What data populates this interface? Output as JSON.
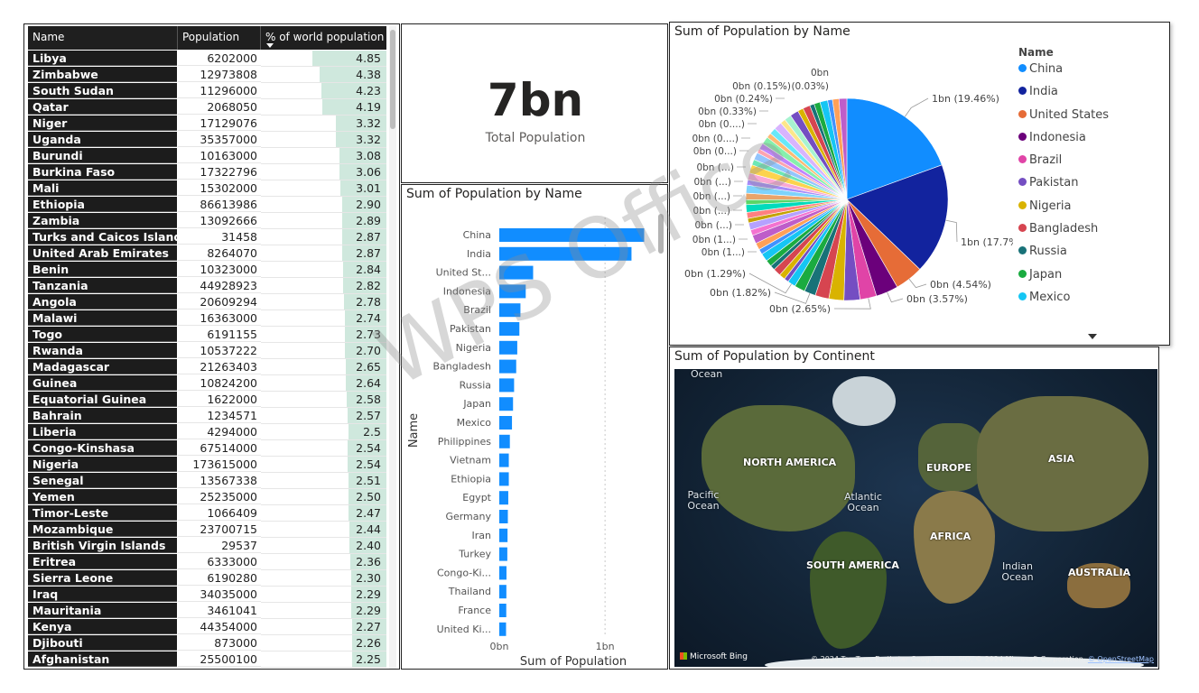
{
  "table": {
    "headers": [
      "Name",
      "Population",
      "% of world population"
    ],
    "rows": [
      [
        "Libya",
        "6202000",
        "4.85"
      ],
      [
        "Zimbabwe",
        "12973808",
        "4.38"
      ],
      [
        "South Sudan",
        "11296000",
        "4.23"
      ],
      [
        "Qatar",
        "2068050",
        "4.19"
      ],
      [
        "Niger",
        "17129076",
        "3.32"
      ],
      [
        "Uganda",
        "35357000",
        "3.32"
      ],
      [
        "Burundi",
        "10163000",
        "3.08"
      ],
      [
        "Burkina Faso",
        "17322796",
        "3.06"
      ],
      [
        "Mali",
        "15302000",
        "3.01"
      ],
      [
        "Ethiopia",
        "86613986",
        "2.90"
      ],
      [
        "Zambia",
        "13092666",
        "2.89"
      ],
      [
        "Turks and Caicos Islands",
        "31458",
        "2.87"
      ],
      [
        "United Arab Emirates",
        "8264070",
        "2.87"
      ],
      [
        "Benin",
        "10323000",
        "2.84"
      ],
      [
        "Tanzania",
        "44928923",
        "2.82"
      ],
      [
        "Angola",
        "20609294",
        "2.78"
      ],
      [
        "Malawi",
        "16363000",
        "2.74"
      ],
      [
        "Togo",
        "6191155",
        "2.73"
      ],
      [
        "Rwanda",
        "10537222",
        "2.70"
      ],
      [
        "Madagascar",
        "21263403",
        "2.65"
      ],
      [
        "Guinea",
        "10824200",
        "2.64"
      ],
      [
        "Equatorial Guinea",
        "1622000",
        "2.58"
      ],
      [
        "Bahrain",
        "1234571",
        "2.57"
      ],
      [
        "Liberia",
        "4294000",
        "2.5"
      ],
      [
        "Congo-Kinshasa",
        "67514000",
        "2.54"
      ],
      [
        "Nigeria",
        "173615000",
        "2.54"
      ],
      [
        "Senegal",
        "13567338",
        "2.51"
      ],
      [
        "Yemen",
        "25235000",
        "2.50"
      ],
      [
        "Timor-Leste",
        "1066409",
        "2.47"
      ],
      [
        "Mozambique",
        "23700715",
        "2.44"
      ],
      [
        "British Virgin Islands",
        "29537",
        "2.40"
      ],
      [
        "Eritrea",
        "6333000",
        "2.36"
      ],
      [
        "Sierra Leone",
        "6190280",
        "2.30"
      ],
      [
        "Iraq",
        "34035000",
        "2.29"
      ],
      [
        "Mauritania",
        "3461041",
        "2.29"
      ],
      [
        "Kenya",
        "44354000",
        "2.27"
      ],
      [
        "Djibouti",
        "873000",
        "2.26"
      ],
      [
        "Afghanistan",
        "25500100",
        "2.25"
      ]
    ]
  },
  "card": {
    "value": "7bn",
    "label": "Total Population"
  },
  "chart_data": [
    {
      "type": "bar",
      "title": "Sum of Population by Name",
      "xlabel": "Sum of Population",
      "ylabel": "Name",
      "x_ticks": [
        "0bn",
        "1bn"
      ],
      "xlim": [
        0,
        1.4
      ],
      "categories": [
        "China",
        "India",
        "United St...",
        "Indonesia",
        "Brazil",
        "Pakistan",
        "Nigeria",
        "Bangladesh",
        "Russia",
        "Japan",
        "Mexico",
        "Philippines",
        "Vietnam",
        "Ethiopia",
        "Egypt",
        "Germany",
        "Iran",
        "Turkey",
        "Congo-Ki...",
        "Thailand",
        "France",
        "United Ki..."
      ],
      "values": [
        1.37,
        1.25,
        0.32,
        0.25,
        0.2,
        0.19,
        0.17,
        0.16,
        0.14,
        0.13,
        0.12,
        0.1,
        0.09,
        0.09,
        0.085,
        0.081,
        0.078,
        0.076,
        0.068,
        0.067,
        0.066,
        0.064
      ]
    },
    {
      "type": "pie",
      "title": "Sum of Population by Name",
      "legend_title": "Name",
      "legend_position": "right",
      "slices": [
        {
          "name": "China",
          "value": 19.46,
          "color": "#118DFF",
          "label": "1bn (19.46%)"
        },
        {
          "name": "India",
          "value": 17.7,
          "color": "#12239E",
          "label": "1bn (17.7%)"
        },
        {
          "name": "United States",
          "value": 4.54,
          "color": "#E66C37",
          "label": "0bn (4.54%)"
        },
        {
          "name": "Indonesia",
          "value": 3.57,
          "color": "#6B007B",
          "label": "0bn (3.57%)"
        },
        {
          "name": "Brazil",
          "value": 2.65,
          "color": "#E044A7",
          "label": "0bn (2.65%)"
        },
        {
          "name": "Pakistan",
          "value": 2.55,
          "color": "#744EC2",
          "label": ""
        },
        {
          "name": "Nigeria",
          "value": 2.4,
          "color": "#D9B300",
          "label": ""
        },
        {
          "name": "Bangladesh",
          "value": 2.2,
          "color": "#D64550",
          "label": ""
        },
        {
          "name": "Russia",
          "value": 1.82,
          "color": "#197278",
          "label": "0bn (1.82%)"
        },
        {
          "name": "Japan",
          "value": 1.7,
          "color": "#1AAB40",
          "label": ""
        },
        {
          "name": "Mexico",
          "value": 1.29,
          "color": "#15C6F4",
          "label": "0bn (1.29%)"
        }
      ],
      "other_slice_labels": [
        "0bn",
        "0bn (0.15%)",
        "(0.03%)",
        "0bn (0.24%)",
        "0bn (0.33%)",
        "0bn (0....)",
        "0bn (0....)",
        "0bn (0...)",
        "0bn (...)",
        "0bn (...)",
        "0bn (...)",
        "0bn (...)",
        "0bn (...)",
        "0bn (1...)",
        "0bn (1...)"
      ]
    }
  ],
  "map": {
    "title": "Sum of Population by Continent",
    "labels": [
      "NORTH AMERICA",
      "EUROPE",
      "ASIA",
      "AFRICA",
      "SOUTH AMERICA",
      "AUSTRALIA",
      "Ocean"
    ],
    "oceans": [
      "Pacific Ocean",
      "Atlantic Ocean",
      "Indian Ocean"
    ],
    "credit": "© 2024 TomTom, Earthstar Geographics SIO, © 2024 Microsoft Corporation, ",
    "credit_link": "© OpenStreetMap",
    "logo": "Microsoft Bing"
  },
  "watermark": "WPS Office",
  "colors": {
    "table_header": "#1f1f1f",
    "table_name_cell": "#1c1c1c",
    "data_bar": "#cfe8dd",
    "bar_blue": "#118DFF"
  }
}
